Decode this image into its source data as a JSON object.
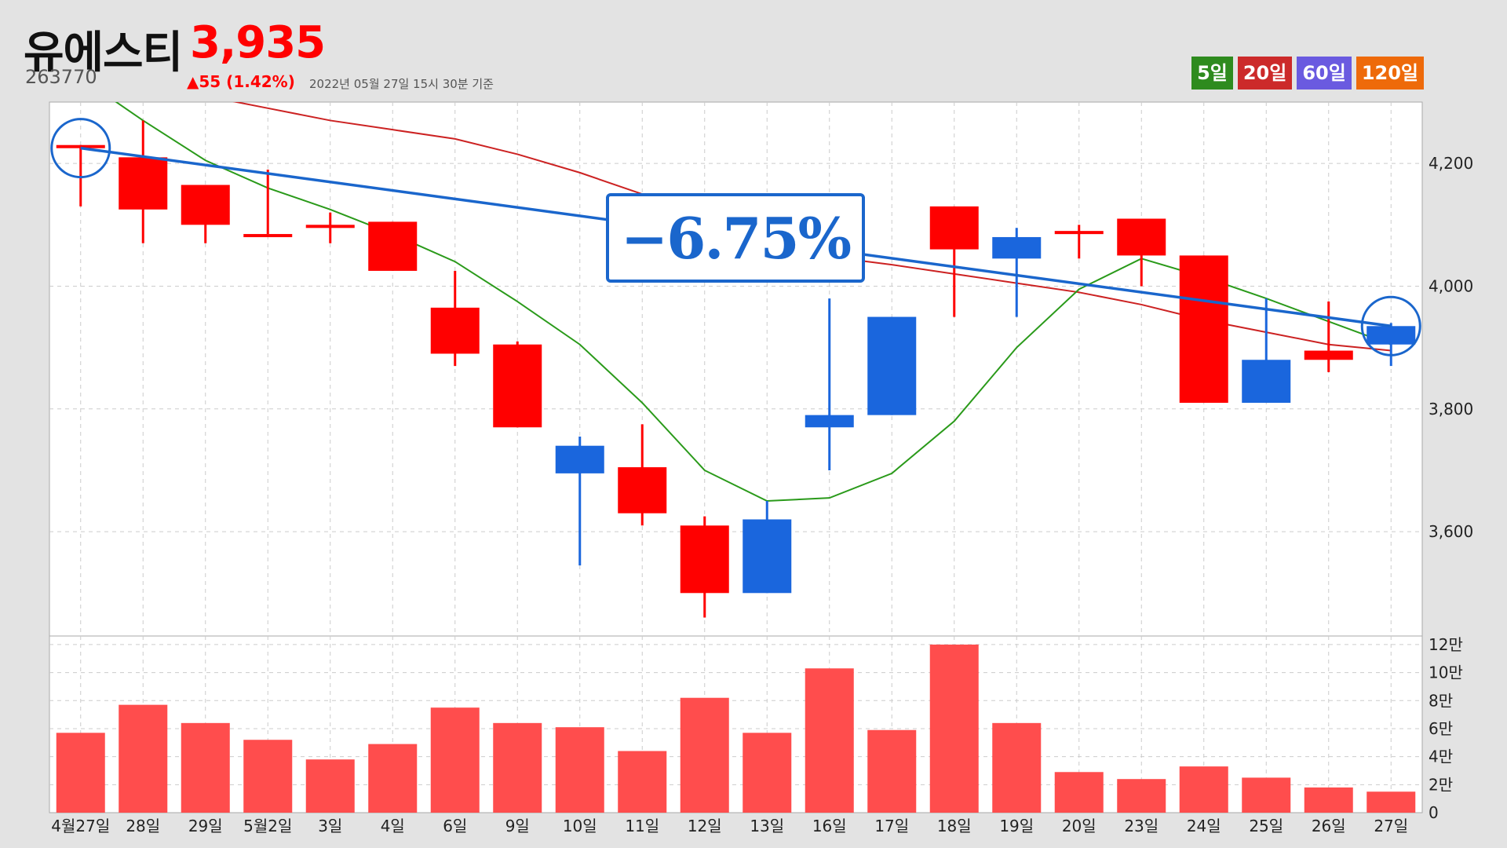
{
  "header": {
    "name": "유에스티",
    "price": "3,935",
    "code": "263770",
    "change": "▲55 (1.42%)",
    "asof": "2022년 05월 27일 15시 30분 기준"
  },
  "ma_legend": [
    {
      "label": "5일",
      "color": "#2e8b1e"
    },
    {
      "label": "20일",
      "color": "#cc2a2a"
    },
    {
      "label": "60일",
      "color": "#6a5ae0"
    },
    {
      "label": "120일",
      "color": "#ee6a0a"
    }
  ],
  "annotation": {
    "text": "−6.75%"
  },
  "colors": {
    "up": "#ff0000",
    "down": "#1a66dd",
    "volume": "#ff4d4d",
    "ma5": "#2a9a1a",
    "ma20": "#cc2222",
    "trend": "#1a66cc"
  },
  "chart_data": [
    {
      "type": "candlestick",
      "categories": [
        "4월27일",
        "28일",
        "29일",
        "5월2일",
        "3일",
        "4일",
        "6일",
        "9일",
        "10일",
        "11일",
        "12일",
        "13일",
        "16일",
        "17일",
        "18일",
        "19일",
        "20일",
        "23일",
        "24일",
        "25일",
        "26일",
        "27일"
      ],
      "ohlc": [
        [
          4230,
          4230,
          4130,
          4230
        ],
        [
          4125,
          4270,
          4070,
          4210
        ],
        [
          4100,
          4165,
          4070,
          4165
        ],
        [
          4085,
          4190,
          4085,
          4085
        ],
        [
          4100,
          4120,
          4070,
          4100
        ],
        [
          4025,
          4105,
          4025,
          4105
        ],
        [
          3890,
          4025,
          3870,
          3965
        ],
        [
          3770,
          3910,
          3770,
          3905
        ],
        [
          3740,
          3755,
          3545,
          3695
        ],
        [
          3630,
          3775,
          3610,
          3705
        ],
        [
          3500,
          3625,
          3460,
          3610
        ],
        [
          3620,
          3650,
          3500,
          3500
        ],
        [
          3790,
          3980,
          3700,
          3770
        ],
        [
          3950,
          3950,
          3790,
          3790
        ],
        [
          4060,
          4130,
          3950,
          4130
        ],
        [
          4080,
          4095,
          3950,
          4045
        ],
        [
          4090,
          4100,
          4045,
          4090
        ],
        [
          4050,
          4110,
          4000,
          4110
        ],
        [
          3810,
          4050,
          3810,
          4050
        ],
        [
          3880,
          3980,
          3810,
          3810
        ],
        [
          3880,
          3975,
          3860,
          3895
        ],
        [
          3935,
          3940,
          3870,
          3905
        ]
      ],
      "ma5": [
        4340,
        4270,
        4205,
        4160,
        4125,
        4085,
        4040,
        3975,
        3905,
        3810,
        3700,
        3650,
        3655,
        3695,
        3780,
        3900,
        3995,
        4045,
        4015,
        3980,
        null,
        3905
      ],
      "ma20": [
        null,
        null,
        4310,
        4290,
        4270,
        4255,
        4240,
        4215,
        4185,
        4150,
        4110,
        4075,
        4048,
        4035,
        4020,
        4005,
        3990,
        3970,
        3945,
        3925,
        3905,
        3895
      ],
      "trendline": {
        "from": [
          "4월27일",
          4225
        ],
        "to": [
          "27일",
          3935
        ]
      },
      "ylim": [
        3430,
        4300
      ],
      "yticks": [
        3600,
        3800,
        4000,
        4200
      ],
      "ytick_labels": [
        "3,600",
        "3,800",
        "4,000",
        "4,200"
      ]
    },
    {
      "type": "bar",
      "categories": [
        "4월27일",
        "28일",
        "29일",
        "5월2일",
        "3일",
        "4일",
        "6일",
        "9일",
        "10일",
        "11일",
        "12일",
        "13일",
        "16일",
        "17일",
        "18일",
        "19일",
        "20일",
        "23일",
        "24일",
        "25일",
        "26일",
        "27일"
      ],
      "values": [
        57000,
        77000,
        64000,
        52000,
        38000,
        49000,
        75000,
        64000,
        61000,
        44000,
        82000,
        57000,
        103000,
        59000,
        120000,
        64000,
        29000,
        24000,
        33000,
        25000,
        18000,
        15000
      ],
      "ylim": [
        0,
        125000
      ],
      "yticks": [
        0,
        20000,
        40000,
        60000,
        80000,
        100000,
        120000
      ],
      "ytick_labels": [
        "0",
        "2만",
        "4만",
        "6만",
        "8만",
        "10만",
        "12만"
      ]
    }
  ]
}
